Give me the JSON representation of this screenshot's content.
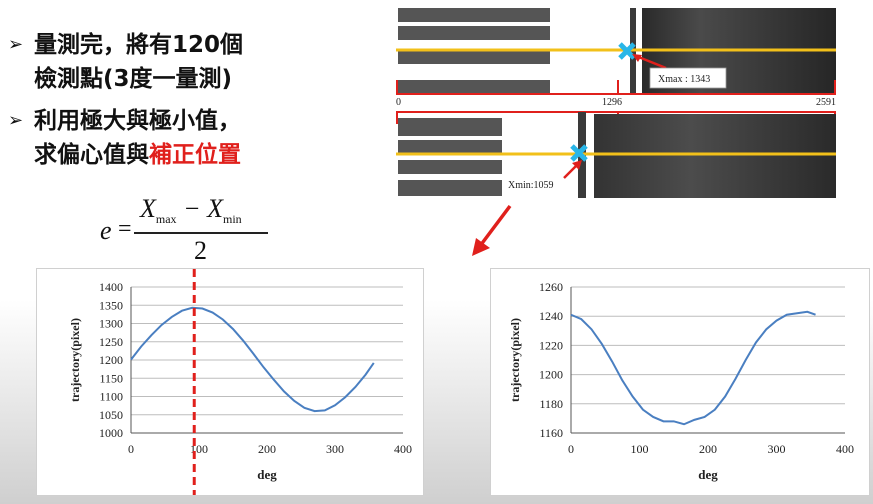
{
  "bullets": [
    {
      "text": "量測完，將有120個檢測點(3度一量測)",
      "line1": "量測完，將有120個",
      "line2": "檢測點(3度一量測)"
    },
    {
      "line1": "利用極大與極小值，",
      "line2_black": "求偏心值與",
      "line2_red": "補正位置"
    }
  ],
  "formula": {
    "lhs": "e",
    "equals": "=",
    "numerator": "X",
    "sub_max": "max",
    "minus": " − X",
    "sub_min": "min",
    "denominator": "2"
  },
  "images": {
    "top": {
      "label": "Xmax : 1343",
      "scale_left": "0",
      "scale_mid": "1296",
      "scale_right": "2591"
    },
    "bottom": {
      "label": "Xmin:1059"
    }
  },
  "colors": {
    "accent_red": "#e0201c",
    "line_yellow": "#f2c01a",
    "marker_cyan": "#29b6e8",
    "series_blue": "#4a7fc1"
  },
  "chart_data": [
    {
      "type": "line",
      "xlabel": "deg",
      "ylabel": "trajectory(pixel)",
      "xlim": [
        0,
        400
      ],
      "ylim": [
        1000,
        1400
      ],
      "xticks": [
        0,
        100,
        200,
        300,
        400
      ],
      "yticks": [
        1000,
        1050,
        1100,
        1150,
        1200,
        1250,
        1300,
        1350,
        1400
      ],
      "marker_x": 93,
      "series": [
        {
          "values_x": [
            0,
            15,
            30,
            45,
            60,
            75,
            90,
            105,
            120,
            135,
            150,
            165,
            180,
            195,
            210,
            225,
            240,
            255,
            270,
            285,
            300,
            315,
            330,
            345,
            357
          ],
          "values_y": [
            1201,
            1237,
            1268,
            1296,
            1318,
            1335,
            1343,
            1341,
            1330,
            1311,
            1285,
            1253,
            1217,
            1180,
            1146,
            1114,
            1088,
            1069,
            1060,
            1062,
            1076,
            1098,
            1126,
            1160,
            1192
          ]
        }
      ],
      "grid": "horizontal"
    },
    {
      "type": "line",
      "xlabel": "deg",
      "ylabel": "trajectory(pixel)",
      "xlim": [
        0,
        400
      ],
      "ylim": [
        1160,
        1260
      ],
      "xticks": [
        0,
        100,
        200,
        300,
        400
      ],
      "yticks": [
        1160,
        1180,
        1200,
        1220,
        1240,
        1260
      ],
      "series": [
        {
          "values_x": [
            0,
            15,
            30,
            45,
            60,
            75,
            90,
            105,
            120,
            135,
            150,
            165,
            180,
            195,
            210,
            225,
            240,
            255,
            270,
            285,
            300,
            315,
            330,
            345,
            357
          ],
          "values_y": [
            1241,
            1238,
            1231,
            1221,
            1209,
            1196,
            1185,
            1176,
            1171,
            1168,
            1168,
            1166,
            1169,
            1171,
            1176,
            1185,
            1197,
            1210,
            1222,
            1231,
            1237,
            1241,
            1242,
            1243,
            1241
          ]
        }
      ],
      "grid": "horizontal"
    }
  ]
}
